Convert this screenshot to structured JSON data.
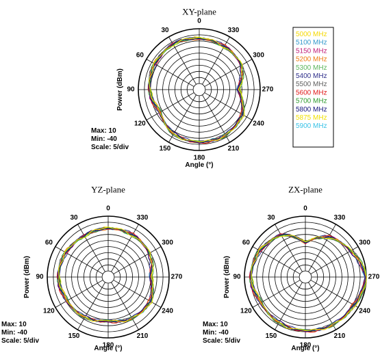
{
  "chart_data": [
    {
      "type": "polar",
      "title": "XY-plane",
      "ylabel": "Power  (dBm)",
      "xlabel": "Angle  (°)",
      "r_range": [
        -40,
        10
      ],
      "r_step": 5,
      "info": [
        "Max: 10",
        "Min: -40",
        "Scale: 5/div"
      ],
      "angle_labels": [
        {
          "deg": 0,
          "text": "0"
        },
        {
          "deg": 330,
          "text": "330"
        },
        {
          "deg": 300,
          "text": "300"
        },
        {
          "deg": 270,
          "text": "270"
        },
        {
          "deg": 240,
          "text": "240"
        },
        {
          "deg": 210,
          "text": "210"
        },
        {
          "deg": 180,
          "text": "180"
        },
        {
          "deg": 150,
          "text": "150"
        },
        {
          "deg": 120,
          "text": "120"
        },
        {
          "deg": 90,
          "text": "90"
        },
        {
          "deg": 60,
          "text": "60"
        },
        {
          "deg": 30,
          "text": "30"
        }
      ],
      "angles": [
        0,
        30,
        60,
        90,
        120,
        150,
        180,
        210,
        240,
        270,
        300,
        330
      ],
      "base_values": [
        2,
        3,
        2,
        1,
        -3,
        2,
        3,
        3,
        1,
        -8,
        0,
        1
      ],
      "series_offsets": [
        [
          0.6,
          -0.4,
          0.5,
          -1.0,
          0.8,
          -0.5,
          0.3,
          0.7,
          -0.6,
          1.2,
          -0.3,
          0.4
        ],
        [
          -0.5,
          0.7,
          -0.3,
          0.8,
          -0.6,
          0.4,
          -0.7,
          0.2,
          0.9,
          -1.1,
          0.5,
          -0.4
        ],
        [
          0.3,
          0.2,
          -0.8,
          0.4,
          1.0,
          -0.7,
          0.5,
          -0.4,
          0.3,
          0.6,
          -0.9,
          0.7
        ],
        [
          -0.7,
          0.5,
          0.6,
          -0.5,
          -0.9,
          0.8,
          -0.2,
          0.6,
          -0.8,
          -0.4,
          0.7,
          -0.2
        ],
        [
          0.8,
          -0.7,
          0.2,
          0.6,
          0.4,
          0.3,
          0.8,
          -0.8,
          0.5,
          0.9,
          0.2,
          -0.7
        ],
        [
          -0.3,
          0.9,
          -0.6,
          -0.8,
          0.7,
          -0.9,
          -0.5,
          0.4,
          -0.3,
          -1.3,
          -0.6,
          0.8
        ],
        [
          0.5,
          -0.2,
          0.9,
          0.3,
          -0.4,
          0.6,
          0.2,
          -0.6,
          0.7,
          0.3,
          0.8,
          -0.5
        ],
        [
          -0.8,
          0.3,
          -0.4,
          0.9,
          0.5,
          -0.3,
          0.9,
          0.5,
          -0.9,
          -0.8,
          -0.4,
          0.6
        ],
        [
          0.2,
          -0.8,
          0.7,
          -0.7,
          -0.8,
          0.9,
          -0.8,
          0.8,
          0.4,
          1.0,
          0.6,
          -0.8
        ],
        [
          -0.4,
          0.6,
          -0.9,
          0.5,
          0.3,
          -0.6,
          0.6,
          -0.9,
          -0.5,
          -0.6,
          -0.7,
          0.3
        ],
        [
          0.9,
          -0.5,
          0.4,
          -0.3,
          -0.5,
          0.5,
          -0.4,
          0.3,
          0.8,
          0.5,
          0.4,
          -0.6
        ]
      ]
    },
    {
      "type": "polar",
      "title": "YZ-plane",
      "ylabel": "Power  (dBm)",
      "xlabel": "Angle  (°)",
      "r_range": [
        -40,
        10
      ],
      "r_step": 5,
      "info": [
        "Max: 10",
        "Min: -40",
        "Scale: 5/div"
      ],
      "angle_labels": [
        {
          "deg": 0,
          "text": "0"
        },
        {
          "deg": 330,
          "text": "330"
        },
        {
          "deg": 300,
          "text": "300"
        },
        {
          "deg": 270,
          "text": "270"
        },
        {
          "deg": 240,
          "text": "240"
        },
        {
          "deg": 210,
          "text": "210"
        },
        {
          "deg": 180,
          "text": "180"
        },
        {
          "deg": 150,
          "text": "150"
        },
        {
          "deg": 120,
          "text": "120"
        },
        {
          "deg": 90,
          "text": "90"
        },
        {
          "deg": 60,
          "text": "60"
        },
        {
          "deg": 30,
          "text": "30"
        }
      ],
      "angles": [
        0,
        30,
        60,
        90,
        120,
        150,
        180,
        210,
        240,
        270,
        300,
        330
      ],
      "base_values": [
        0,
        -1,
        0,
        1,
        -1,
        -2,
        -4,
        -1,
        0,
        -5,
        -1,
        0
      ],
      "series_offsets": [
        [
          0.6,
          -0.4,
          0.5,
          -1.0,
          0.8,
          -0.5,
          0.3,
          0.7,
          -0.6,
          1.2,
          -0.3,
          0.4
        ],
        [
          -0.5,
          0.7,
          -0.3,
          0.8,
          -0.6,
          0.4,
          -0.7,
          0.2,
          0.9,
          -1.1,
          0.5,
          -0.4
        ],
        [
          0.3,
          0.2,
          -0.8,
          0.4,
          1.0,
          -0.7,
          0.5,
          -0.4,
          0.3,
          0.6,
          -0.9,
          0.7
        ],
        [
          -0.7,
          0.5,
          0.6,
          -0.5,
          -0.9,
          0.8,
          -0.2,
          0.6,
          -0.8,
          -0.4,
          0.7,
          -0.2
        ],
        [
          0.8,
          -0.7,
          0.2,
          0.6,
          0.4,
          0.3,
          0.8,
          -0.8,
          0.5,
          0.9,
          0.2,
          -0.7
        ],
        [
          -0.3,
          0.9,
          -0.6,
          -0.8,
          0.7,
          -0.9,
          -0.5,
          0.4,
          -0.3,
          -1.3,
          -0.6,
          0.8
        ],
        [
          0.5,
          -0.2,
          0.9,
          0.3,
          -0.4,
          0.6,
          0.2,
          -0.6,
          0.7,
          0.3,
          0.8,
          -0.5
        ],
        [
          -0.8,
          0.3,
          -0.4,
          0.9,
          0.5,
          -0.3,
          0.9,
          0.5,
          -0.9,
          -0.8,
          -0.4,
          0.6
        ],
        [
          0.2,
          -0.8,
          0.7,
          -0.7,
          -0.8,
          0.9,
          -0.8,
          0.8,
          0.4,
          1.0,
          0.6,
          -0.8
        ],
        [
          -0.4,
          0.6,
          -0.9,
          0.5,
          0.3,
          -0.6,
          0.6,
          -0.9,
          -0.5,
          -0.6,
          -0.7,
          0.3
        ],
        [
          0.9,
          -0.5,
          0.4,
          -0.3,
          -0.5,
          0.5,
          -0.4,
          0.3,
          0.8,
          0.5,
          0.4,
          -0.6
        ]
      ]
    },
    {
      "type": "polar",
      "title": "ZX-plane",
      "ylabel": "Power  (dBm)",
      "xlabel": "Angle  (°)",
      "r_range": [
        -40,
        10
      ],
      "r_step": 5,
      "info": [
        "Max: 10",
        "Min: -40",
        "Scale: 5/div"
      ],
      "angle_labels": [
        {
          "deg": 0,
          "text": "0"
        },
        {
          "deg": 330,
          "text": "330"
        },
        {
          "deg": 300,
          "text": "300"
        },
        {
          "deg": 270,
          "text": "270"
        },
        {
          "deg": 240,
          "text": "240"
        },
        {
          "deg": 210,
          "text": "210"
        },
        {
          "deg": 180,
          "text": "180"
        },
        {
          "deg": 150,
          "text": "150"
        },
        {
          "deg": 120,
          "text": "120"
        },
        {
          "deg": 90,
          "text": "90"
        },
        {
          "deg": 60,
          "text": "60"
        },
        {
          "deg": 30,
          "text": "30"
        }
      ],
      "angles": [
        0,
        30,
        60,
        90,
        120,
        150,
        180,
        210,
        240,
        270,
        300,
        330
      ],
      "base_values": [
        -12,
        0,
        3,
        5,
        2,
        3,
        4,
        5,
        6,
        10,
        3,
        -2
      ],
      "series_offsets": [
        [
          0.6,
          -0.4,
          0.5,
          -1.0,
          0.8,
          -0.5,
          0.3,
          0.7,
          -0.6,
          1.2,
          -0.3,
          0.4
        ],
        [
          -0.5,
          0.7,
          -0.3,
          0.8,
          -0.6,
          0.4,
          -0.7,
          0.2,
          0.9,
          -1.1,
          0.5,
          -0.4
        ],
        [
          0.3,
          0.2,
          -0.8,
          0.4,
          1.0,
          -0.7,
          0.5,
          -0.4,
          0.3,
          0.6,
          -0.9,
          0.7
        ],
        [
          -0.7,
          0.5,
          0.6,
          -0.5,
          -0.9,
          0.8,
          -0.2,
          0.6,
          -0.8,
          -0.4,
          0.7,
          -0.2
        ],
        [
          0.8,
          -0.7,
          0.2,
          0.6,
          0.4,
          0.3,
          0.8,
          -0.8,
          0.5,
          0.9,
          0.2,
          -0.7
        ],
        [
          -0.3,
          0.9,
          -0.6,
          -0.8,
          0.7,
          -0.9,
          -0.5,
          0.4,
          -0.3,
          -1.3,
          -0.6,
          0.8
        ],
        [
          0.5,
          -0.2,
          0.9,
          0.3,
          -0.4,
          0.6,
          0.2,
          -0.6,
          0.7,
          0.3,
          0.8,
          -0.5
        ],
        [
          -0.8,
          0.3,
          -0.4,
          0.9,
          0.5,
          -0.3,
          0.9,
          0.5,
          -0.9,
          -0.8,
          -0.4,
          0.6
        ],
        [
          0.2,
          -0.8,
          0.7,
          -0.7,
          -0.8,
          0.9,
          -0.8,
          0.8,
          0.4,
          1.0,
          0.6,
          -0.8
        ],
        [
          -0.4,
          0.6,
          -0.9,
          0.5,
          0.3,
          -0.6,
          0.6,
          -0.9,
          -0.5,
          -0.6,
          -0.7,
          0.3
        ],
        [
          0.9,
          -0.5,
          0.4,
          -0.3,
          -0.5,
          0.5,
          -0.4,
          0.3,
          0.8,
          0.5,
          0.4,
          -0.6
        ]
      ]
    }
  ],
  "legend": {
    "items": [
      {
        "name": "5000 MHz",
        "color": "#f5d800"
      },
      {
        "name": "5100 MHz",
        "color": "#3399cc"
      },
      {
        "name": "5150 MHz",
        "color": "#c0207a"
      },
      {
        "name": "5200 MHz",
        "color": "#ee7a10"
      },
      {
        "name": "5300 MHz",
        "color": "#5bb55b"
      },
      {
        "name": "5400 MHz",
        "color": "#2d2d8a"
      },
      {
        "name": "5500 MHz",
        "color": "#606060"
      },
      {
        "name": "5600 MHz",
        "color": "#e01818"
      },
      {
        "name": "5700 MHz",
        "color": "#2e9a2e"
      },
      {
        "name": "5800 MHz",
        "color": "#12127a"
      },
      {
        "name": "5875 MHz",
        "color": "#f0e000"
      },
      {
        "name": "5900 MHz",
        "color": "#39c2e6"
      }
    ]
  }
}
